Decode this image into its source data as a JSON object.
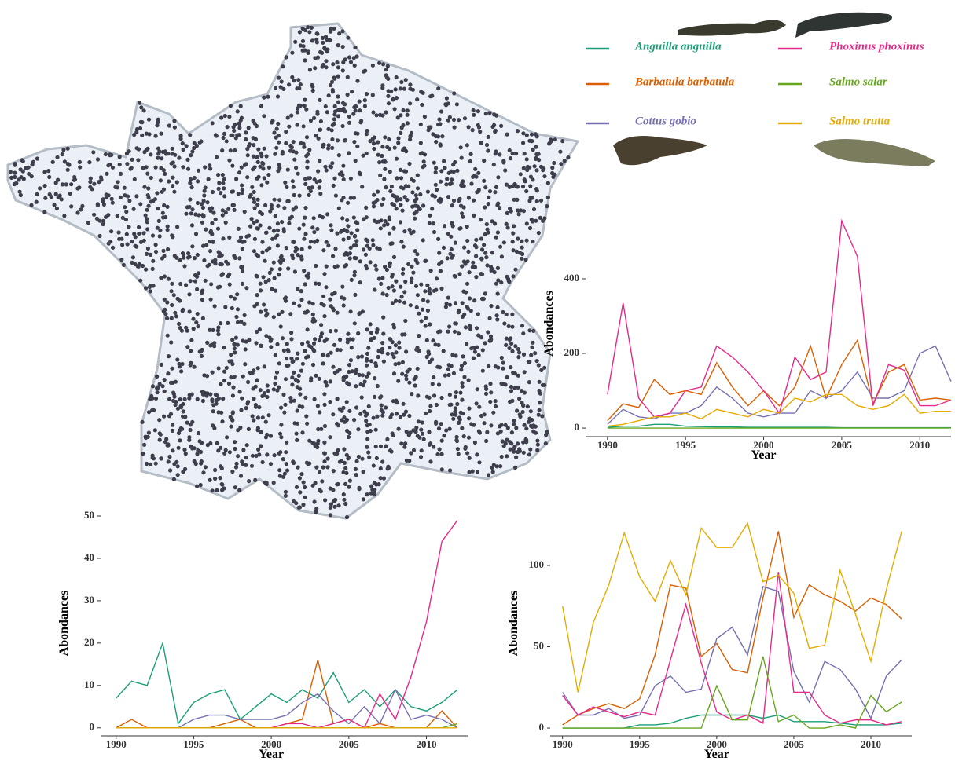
{
  "chart_data": [
    {
      "type": "line",
      "x_label": "Year",
      "y_label": "Abondances",
      "x": [
        1990,
        1991,
        1992,
        1993,
        1994,
        1995,
        1996,
        1997,
        1998,
        1999,
        2000,
        2001,
        2002,
        2003,
        2004,
        2005,
        2006,
        2007,
        2008,
        2009,
        2010,
        2011,
        2012
      ],
      "xlim": [
        1988.6,
        2012
      ],
      "xticks": [
        1990,
        1995,
        2000,
        2005,
        2010
      ],
      "ylim": [
        -23,
        583
      ],
      "yticks": [
        0,
        200,
        400
      ],
      "series": [
        {
          "name": "Anguilla anguilla",
          "color": "#1b9e77",
          "values": [
            2,
            5,
            5,
            10,
            10,
            5,
            4,
            3,
            3,
            2,
            2,
            2,
            2,
            2,
            2,
            1,
            1,
            1,
            1,
            1,
            1,
            1,
            1
          ]
        },
        {
          "name": "Barbatula barbatula",
          "color": "#d95f02",
          "values": [
            20,
            65,
            55,
            130,
            90,
            100,
            90,
            175,
            110,
            60,
            100,
            60,
            110,
            220,
            80,
            170,
            235,
            65,
            150,
            170,
            75,
            80,
            75
          ]
        },
        {
          "name": "Cottus gobio",
          "color": "#7570b3",
          "values": [
            10,
            50,
            30,
            25,
            40,
            40,
            60,
            110,
            80,
            40,
            30,
            40,
            40,
            100,
            80,
            100,
            150,
            80,
            80,
            100,
            200,
            220,
            125
          ]
        },
        {
          "name": "Phoxinus phoxinus",
          "color": "#e7298a",
          "values": [
            90,
            335,
            80,
            30,
            40,
            100,
            110,
            220,
            190,
            150,
            100,
            40,
            190,
            130,
            150,
            555,
            460,
            60,
            170,
            155,
            60,
            60,
            75
          ]
        },
        {
          "name": "Salmo salar",
          "color": "#66a61e",
          "values": [
            0,
            0,
            0,
            0,
            0,
            0,
            0,
            0,
            0,
            0,
            0,
            0,
            0,
            0,
            0,
            0,
            0,
            0,
            0,
            0,
            0,
            0,
            0
          ]
        },
        {
          "name": "Salmo trutta",
          "color": "#e6ab02",
          "values": [
            5,
            10,
            20,
            30,
            30,
            40,
            25,
            50,
            40,
            30,
            50,
            40,
            80,
            70,
            90,
            90,
            60,
            50,
            60,
            90,
            40,
            45,
            45
          ]
        }
      ]
    },
    {
      "type": "line",
      "x_label": "Year",
      "y_label": "Abondances",
      "x": [
        1990,
        1991,
        1992,
        1993,
        1994,
        1995,
        1996,
        1997,
        1998,
        1999,
        2000,
        2001,
        2002,
        2003,
        2004,
        2005,
        2006,
        2007,
        2008,
        2009,
        2010,
        2011,
        2012
      ],
      "xlim": [
        1989,
        2012.66
      ],
      "xticks": [
        1990,
        1995,
        2000,
        2005,
        2010
      ],
      "ylim": [
        -1.9,
        51.3
      ],
      "yticks": [
        0,
        10,
        20,
        30,
        40,
        50
      ],
      "series": [
        {
          "color": "#1b9e77",
          "values": [
            7,
            11,
            10,
            20,
            1,
            6,
            8,
            9,
            2,
            5,
            8,
            6,
            9,
            7,
            13,
            6,
            9,
            5,
            9,
            5,
            4,
            6,
            9
          ]
        },
        {
          "color": "#d95f02",
          "values": [
            0,
            2,
            0,
            0,
            0,
            0,
            0,
            1,
            2,
            0,
            0,
            1,
            2,
            16,
            1,
            2,
            0,
            1,
            0,
            0,
            0,
            4,
            0
          ]
        },
        {
          "color": "#7570b3",
          "values": [
            0,
            0,
            0,
            0,
            0,
            2,
            3,
            3,
            2,
            2,
            2,
            3,
            6,
            8,
            4,
            1,
            5,
            1,
            9,
            2,
            3,
            2,
            0
          ]
        },
        {
          "color": "#e7298a",
          "values": [
            0,
            0,
            0,
            0,
            0,
            0,
            0,
            0,
            0,
            0,
            0,
            1,
            1,
            0,
            1,
            2,
            0,
            8,
            2,
            12,
            25,
            44,
            49
          ]
        },
        {
          "color": "#66a61e",
          "values": [
            0,
            0,
            0,
            0,
            0,
            0,
            0,
            0,
            0,
            0,
            0,
            0,
            0,
            0,
            0,
            0,
            0,
            0,
            0,
            0,
            0,
            0,
            1
          ]
        },
        {
          "color": "#e6ab02",
          "values": [
            0,
            0,
            0,
            0,
            0,
            0,
            0,
            0,
            0,
            0,
            0,
            0,
            0,
            0,
            0,
            0,
            0,
            0,
            0,
            0,
            0,
            0,
            0
          ]
        }
      ]
    },
    {
      "type": "line",
      "x_label": "Year",
      "y_label": "Abondances",
      "x": [
        1990,
        1991,
        1992,
        1993,
        1994,
        1995,
        1996,
        1997,
        1998,
        1999,
        2000,
        2001,
        2002,
        2003,
        2004,
        2005,
        2006,
        2007,
        2008,
        2009,
        2010,
        2011,
        2012
      ],
      "xlim": [
        1989.2,
        2012.65
      ],
      "xticks": [
        1990,
        1995,
        2000,
        2005,
        2010
      ],
      "ylim": [
        -4.8,
        133.8
      ],
      "yticks": [
        0,
        50,
        100
      ],
      "series": [
        {
          "color": "#1b9e77",
          "values": [
            0,
            0,
            0,
            0,
            0,
            2,
            2,
            3,
            6,
            8,
            8,
            8,
            8,
            6,
            8,
            4,
            4,
            4,
            3,
            2,
            2,
            2,
            3
          ]
        },
        {
          "color": "#d95f02",
          "values": [
            2,
            8,
            12,
            15,
            12,
            18,
            45,
            88,
            86,
            44,
            52,
            36,
            34,
            80,
            121,
            68,
            88,
            82,
            78,
            72,
            80,
            76,
            67
          ]
        },
        {
          "color": "#7570b3",
          "values": [
            22,
            8,
            8,
            12,
            6,
            8,
            26,
            32,
            22,
            24,
            55,
            62,
            45,
            87,
            84,
            35,
            16,
            41,
            36,
            24,
            6,
            32,
            42
          ]
        },
        {
          "color": "#e7298a",
          "values": [
            20,
            8,
            13,
            10,
            7,
            10,
            8,
            42,
            76,
            40,
            10,
            5,
            8,
            3,
            96,
            22,
            22,
            8,
            3,
            5,
            5,
            2,
            4
          ]
        },
        {
          "color": "#66a61e",
          "values": [
            0,
            0,
            0,
            0,
            0,
            0,
            0,
            0,
            0,
            0,
            26,
            5,
            5,
            44,
            4,
            8,
            0,
            0,
            2,
            0,
            20,
            10,
            16
          ]
        },
        {
          "color": "#e6ab02",
          "values": [
            75,
            22,
            65,
            88,
            120,
            93,
            78,
            103,
            82,
            123,
            111,
            111,
            126,
            90,
            94,
            83,
            49,
            51,
            97,
            70,
            41,
            85,
            121
          ]
        }
      ]
    }
  ]
}
